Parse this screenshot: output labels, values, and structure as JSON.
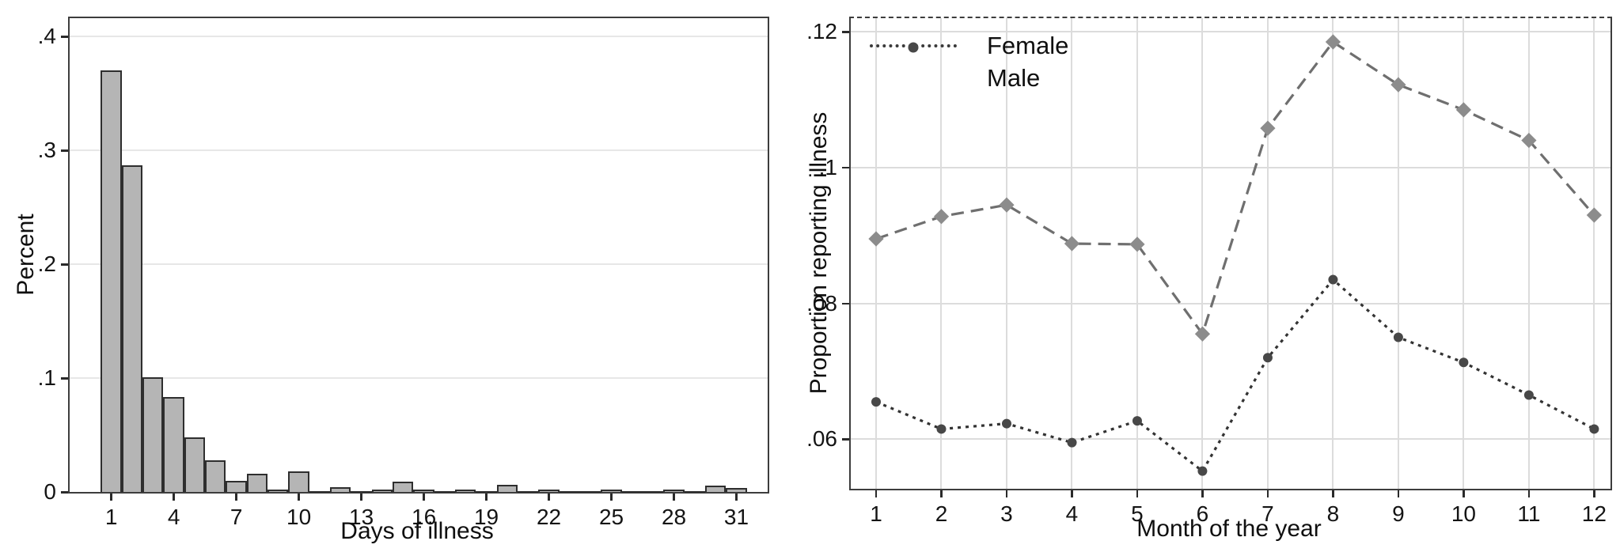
{
  "style": {
    "background": "#ffffff",
    "frame_color": "#3d3d3d",
    "text_color": "#0f0f0f",
    "tick_color": "#2a2a2a"
  },
  "legend": {
    "entries": [
      "Female",
      "Male"
    ],
    "position": "top-left"
  },
  "chart_data": [
    {
      "type": "bar",
      "title": "",
      "xlabel": "Days of illness",
      "ylabel": "Percent",
      "x": [
        1,
        2,
        3,
        4,
        5,
        6,
        7,
        8,
        9,
        10,
        11,
        12,
        13,
        14,
        15,
        16,
        17,
        18,
        19,
        20,
        21,
        22,
        23,
        24,
        25,
        26,
        27,
        28,
        29,
        30,
        31
      ],
      "values": [
        0.37,
        0.287,
        0.101,
        0.083,
        0.048,
        0.028,
        0.01,
        0.016,
        0.002,
        0.018,
        0.001,
        0.004,
        0.001,
        0.002,
        0.009,
        0.002,
        0.001,
        0.002,
        0.001,
        0.006,
        0.001,
        0.002,
        0.001,
        0.001,
        0.002,
        0.001,
        0.001,
        0.002,
        0.001,
        0.0055,
        0.0035
      ],
      "xticks": [
        1,
        4,
        7,
        10,
        13,
        16,
        19,
        22,
        25,
        28,
        31
      ],
      "yticks": [
        0,
        0.1,
        0.2,
        0.3,
        0.4
      ],
      "ytick_labels": [
        "0",
        ".1",
        ".2",
        ".3",
        ".4"
      ],
      "xlim": [
        -1.0,
        32.5
      ],
      "ylim": [
        0,
        0.416
      ],
      "grid_vertical": false,
      "grid_on": true,
      "style": {
        "bar_fill": "#b5b5b5",
        "bar_border": "#2e2e2e",
        "grid_color": "#e7e7e7",
        "tick_color": "#2a2a2a"
      }
    },
    {
      "type": "line",
      "title": "",
      "xlabel": "Month of the year",
      "ylabel": "Proportion reporting illness",
      "x": [
        1,
        2,
        3,
        4,
        5,
        6,
        7,
        8,
        9,
        10,
        11,
        12
      ],
      "series": [
        {
          "name": "Male",
          "marker": "diamond",
          "line_style": "long-dash",
          "color": "#6f6f6f",
          "marker_color": "#8c8c8c",
          "dash": "16,9",
          "values": [
            0.0895,
            0.0928,
            0.0945,
            0.0888,
            0.0887,
            0.0755,
            0.1058,
            0.1185,
            0.1122,
            0.1085,
            0.104,
            0.093
          ]
        },
        {
          "name": "Female",
          "marker": "circle",
          "line_style": "dotted",
          "color": "#333333",
          "marker_color": "#484848",
          "dash": "4,6",
          "values": [
            0.0655,
            0.0615,
            0.0623,
            0.0595,
            0.0627,
            0.0553,
            0.072,
            0.0835,
            0.075,
            0.0713,
            0.0665,
            0.0615
          ]
        }
      ],
      "xticks": [
        1,
        2,
        3,
        4,
        5,
        6,
        7,
        8,
        9,
        10,
        11,
        12
      ],
      "yticks": [
        0.06,
        0.08,
        0.1,
        0.12
      ],
      "ytick_labels": [
        ".06",
        ".08",
        ".1",
        ".12"
      ],
      "xlim": [
        0.612,
        12.25
      ],
      "ylim": [
        0.0527,
        0.122
      ],
      "grid_vertical": true,
      "grid_on": true,
      "legend_entries": [
        "Female",
        "Male"
      ],
      "style": {
        "grid_color": "#dcdcdc",
        "tick_color": "#2a2a2a"
      }
    }
  ]
}
